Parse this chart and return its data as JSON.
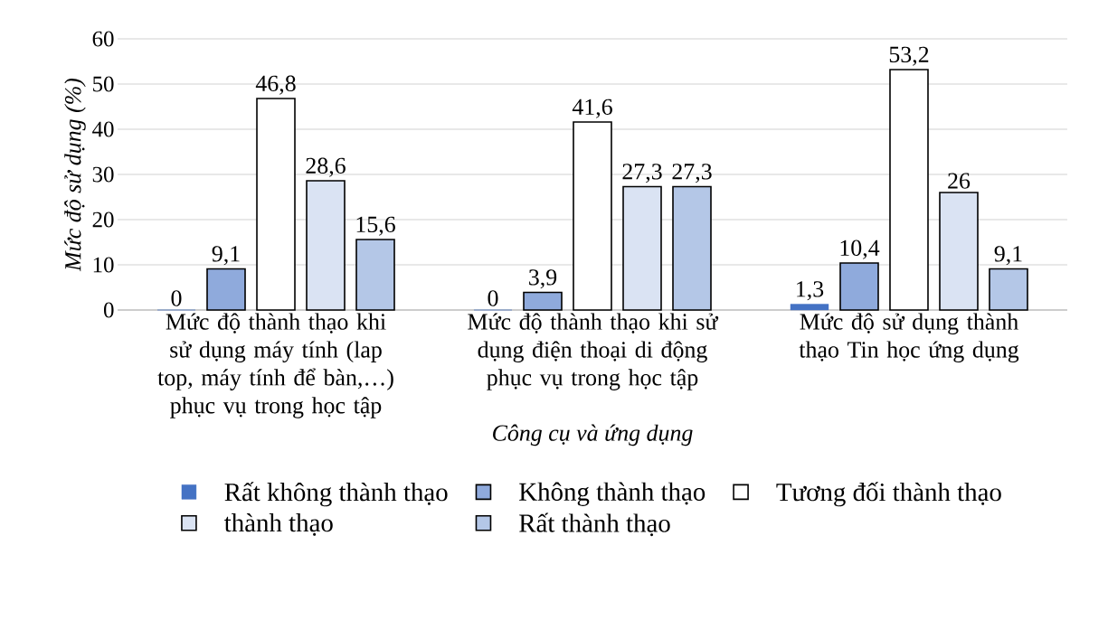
{
  "chart_data": {
    "type": "bar",
    "xlabel": "Công cụ và ứng dụng",
    "ylabel": "Mức độ sử dụng (%)",
    "categories": [
      "Mức độ thành thạo khi sử dụng máy tính (lap top, máy tính để bàn,…) phục vụ trong học tập",
      "Mức độ thành thạo khi sử dụng điện thoại di động phục vụ trong học tập",
      "Mức độ sử dụng thành thạo Tin học ứng dụng"
    ],
    "series": [
      {
        "name": "Rất không thành thạo",
        "color": "#4472c4",
        "values": [
          0,
          0,
          1.3
        ],
        "value_labels": [
          "0",
          "0",
          "1,3"
        ]
      },
      {
        "name": "Không thành thạo",
        "color": "#8faadc",
        "values": [
          9.1,
          3.9,
          10.4
        ],
        "value_labels": [
          "9,1",
          "3,9",
          "10,4"
        ]
      },
      {
        "name": "Tương đối thành thạo",
        "color": "#ffffff",
        "values": [
          46.8,
          41.6,
          53.2
        ],
        "value_labels": [
          "46,8",
          "41,6",
          "53,2"
        ]
      },
      {
        "name": "thành thạo",
        "color": "#dae3f3",
        "values": [
          28.6,
          27.3,
          26
        ],
        "value_labels": [
          "28,6",
          "27,3",
          "26"
        ]
      },
      {
        "name": "Rất thành thạo",
        "color": "#b4c7e7",
        "values": [
          15.6,
          27.3,
          9.1
        ],
        "value_labels": [
          "15,6",
          "27,3",
          "9,1"
        ]
      }
    ],
    "ylim": [
      0,
      60
    ],
    "yticks": [
      0,
      10,
      20,
      30,
      40,
      50,
      60
    ],
    "grid": "y",
    "legend": "bottom"
  }
}
